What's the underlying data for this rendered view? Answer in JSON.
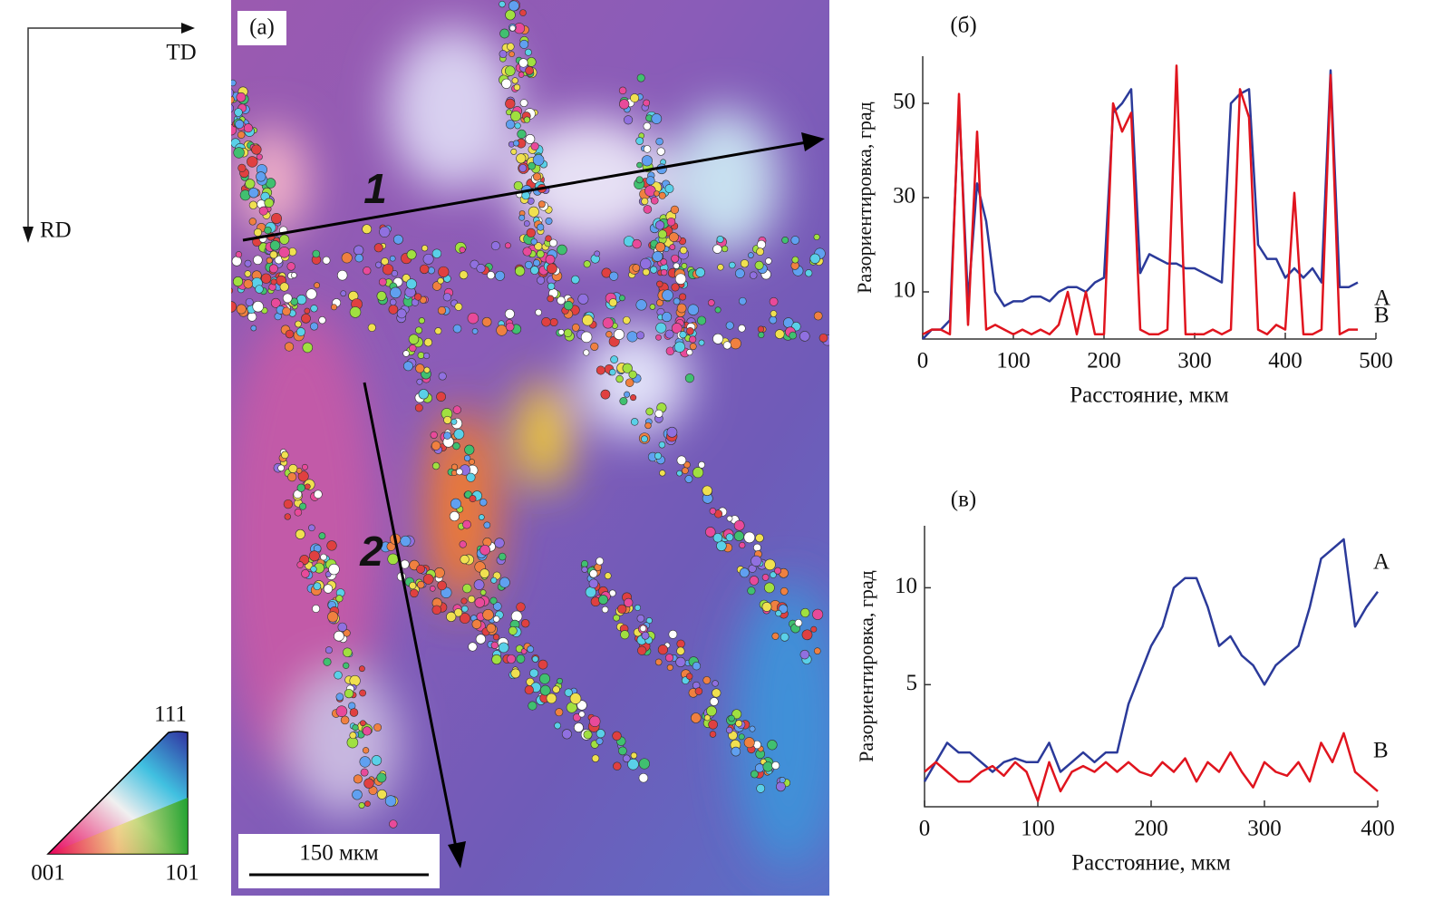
{
  "panel_a": {
    "label": "(a)",
    "td": "TD",
    "rd": "RD",
    "line1": "1",
    "line2": "2",
    "scale": "150 мкм",
    "ipf": [
      "111",
      "001",
      "101"
    ]
  },
  "chart_data": [
    {
      "type": "line",
      "title": "(б)",
      "x_label": "Расстояние, мкм",
      "y_label": "Разориентировка, град",
      "xlim": [
        0,
        500
      ],
      "ylim": [
        0,
        60
      ],
      "xticks": [
        0,
        100,
        200,
        300,
        400,
        500
      ],
      "yticks": [
        10,
        30,
        50
      ],
      "x": [
        0,
        10,
        20,
        30,
        40,
        50,
        60,
        70,
        80,
        90,
        100,
        110,
        120,
        130,
        140,
        150,
        160,
        170,
        180,
        190,
        200,
        210,
        220,
        230,
        240,
        250,
        260,
        270,
        280,
        290,
        300,
        310,
        320,
        330,
        340,
        350,
        360,
        370,
        380,
        390,
        400,
        410,
        420,
        430,
        440,
        450,
        460,
        470,
        480
      ],
      "series": [
        {
          "name": "A",
          "color": "#2b3a9a",
          "values": [
            0,
            2,
            2,
            4,
            50,
            8,
            33,
            25,
            10,
            7,
            8,
            8,
            9,
            9,
            8,
            10,
            11,
            11,
            10,
            12,
            13,
            48,
            50,
            53,
            14,
            18,
            17,
            16,
            16,
            15,
            15,
            14,
            13,
            12,
            50,
            52,
            53,
            20,
            17,
            17,
            13,
            15,
            13,
            15,
            12,
            57,
            11,
            11,
            12
          ]
        },
        {
          "name": "B",
          "color": "#e0141e",
          "values": [
            1,
            2,
            2,
            1,
            52,
            3,
            44,
            2,
            3,
            2,
            1,
            2,
            1,
            2,
            1,
            3,
            10,
            1,
            10,
            1,
            1,
            50,
            44,
            48,
            2,
            1,
            1,
            2,
            58,
            1,
            1,
            1,
            2,
            1,
            2,
            53,
            47,
            2,
            1,
            3,
            2,
            31,
            1,
            1,
            2,
            56,
            1,
            2,
            2
          ]
        }
      ]
    },
    {
      "type": "line",
      "title": "(в)",
      "x_label": "Расстояние, мкм",
      "y_label": "Разориентировка, град",
      "xlim": [
        0,
        400
      ],
      "ylim": [
        -1.3,
        13.2
      ],
      "xticks": [
        0,
        100,
        200,
        300,
        400
      ],
      "yticks": [
        5,
        10
      ],
      "x": [
        0,
        10,
        20,
        30,
        40,
        50,
        60,
        70,
        80,
        90,
        100,
        110,
        120,
        130,
        140,
        150,
        160,
        170,
        180,
        190,
        200,
        210,
        220,
        230,
        240,
        250,
        260,
        270,
        280,
        290,
        300,
        310,
        320,
        330,
        340,
        350,
        360,
        370,
        380,
        390,
        400
      ],
      "series": [
        {
          "name": "A",
          "color": "#2b3a9a",
          "values": [
            0,
            1,
            2,
            1.5,
            1.5,
            1,
            0.5,
            1,
            1.2,
            1,
            1,
            2,
            0.5,
            1,
            1.5,
            1,
            1.5,
            1.5,
            4,
            5.5,
            7,
            8,
            10,
            10.5,
            10.5,
            9,
            7,
            7.5,
            6.5,
            6,
            5,
            6,
            6.5,
            7,
            9,
            11.5,
            12,
            12.5,
            8,
            9,
            9.8
          ]
        },
        {
          "name": "B",
          "color": "#e0141e",
          "values": [
            0.5,
            1,
            0.5,
            0,
            0,
            0.5,
            0.8,
            0.3,
            1,
            0.5,
            -1,
            1,
            -0.5,
            0.5,
            0.8,
            0.5,
            1,
            0.5,
            1,
            0.5,
            0.3,
            1,
            0.5,
            1.2,
            0,
            1,
            0.5,
            1.5,
            0.5,
            -0.3,
            1,
            0.5,
            0.3,
            1,
            0,
            2,
            1,
            2.5,
            0.5,
            0,
            -0.5
          ]
        }
      ]
    }
  ]
}
